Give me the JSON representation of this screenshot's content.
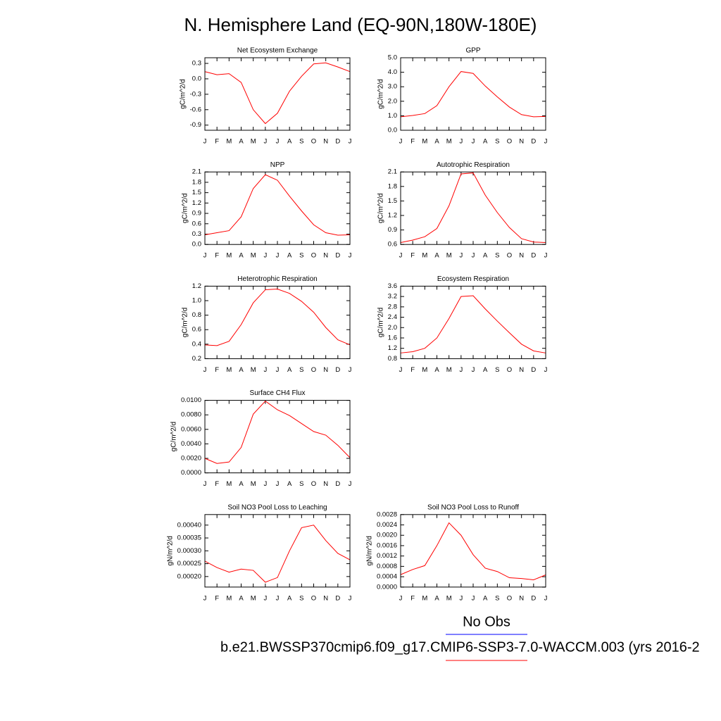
{
  "title": "N. Hemisphere Land (EQ-90N,180W-180E)",
  "legend": [
    {
      "name": "No Obs",
      "color": "#0000ff"
    },
    {
      "name": "b.e21.BWSSP370cmip6.f09_g17.CMIP6-SSP3-7.0-WACCM.003 (yrs 2016-2",
      "color": "#ff0000"
    }
  ],
  "chart_data": [
    {
      "type": "line",
      "title": "Net Ecosystem Exchange",
      "y_label": "gC/m^2/d",
      "categories": [
        "J",
        "F",
        "M",
        "A",
        "M",
        "J",
        "J",
        "A",
        "S",
        "O",
        "N",
        "D",
        "J"
      ],
      "values": [
        0.14,
        0.08,
        0.1,
        -0.07,
        -0.6,
        -0.87,
        -0.67,
        -0.24,
        0.05,
        0.29,
        0.31,
        0.23,
        0.14
      ],
      "color": "#ff0000",
      "ylim": [
        -1.0,
        0.41
      ],
      "yticks": [
        -0.9,
        -0.6,
        -0.3,
        {
          "value": 0,
          "label": "0.0"
        },
        0.3
      ]
    },
    {
      "type": "line",
      "title": "GPP",
      "y_label": "gC/m^2/d",
      "categories": [
        "J",
        "F",
        "M",
        "A",
        "M",
        "J",
        "J",
        "A",
        "S",
        "O",
        "N",
        "D",
        "J"
      ],
      "values": [
        0.93,
        1.02,
        1.15,
        1.7,
        3.0,
        4.05,
        3.92,
        3.05,
        2.3,
        1.6,
        1.08,
        0.93,
        0.95
      ],
      "color": "#ff0000",
      "ylim": [
        0,
        5
      ],
      "yticks": [
        {
          "value": 0,
          "label": "0.0"
        },
        {
          "value": 1,
          "label": "1.0"
        },
        {
          "value": 2,
          "label": "2.0"
        },
        {
          "value": 3,
          "label": "3.0"
        },
        {
          "value": 4,
          "label": "4.0"
        },
        {
          "value": 5,
          "label": "5.0"
        }
      ]
    },
    {
      "type": "line",
      "title": "NPP",
      "y_label": "gC/m^2/d",
      "categories": [
        "J",
        "F",
        "M",
        "A",
        "M",
        "J",
        "J",
        "A",
        "S",
        "O",
        "N",
        "D",
        "J"
      ],
      "values": [
        0.28,
        0.34,
        0.4,
        0.8,
        1.62,
        2.02,
        1.86,
        1.4,
        0.97,
        0.57,
        0.34,
        0.27,
        0.28
      ],
      "color": "#ff0000",
      "ylim": [
        0,
        2.1
      ],
      "yticks": [
        {
          "value": 0,
          "label": "0.0"
        },
        0.3,
        0.6,
        0.9,
        1.2,
        1.5,
        1.8,
        2.1
      ]
    },
    {
      "type": "line",
      "title": "Autotrophic Respiration",
      "y_label": "gC/m^2/d",
      "categories": [
        "J",
        "F",
        "M",
        "A",
        "M",
        "J",
        "J",
        "A",
        "S",
        "O",
        "N",
        "D",
        "J"
      ],
      "values": [
        0.64,
        0.69,
        0.76,
        0.93,
        1.4,
        2.06,
        2.08,
        1.62,
        1.26,
        0.95,
        0.72,
        0.65,
        0.64
      ],
      "color": "#ff0000",
      "ylim": [
        0.6,
        2.1
      ],
      "yticks": [
        0.6,
        0.9,
        1.2,
        1.5,
        1.8,
        2.1
      ]
    },
    {
      "type": "line",
      "title": "Heterotrophic Respiration",
      "y_label": "gC/m^2/d",
      "categories": [
        "J",
        "F",
        "M",
        "A",
        "M",
        "J",
        "J",
        "A",
        "S",
        "O",
        "N",
        "D",
        "J"
      ],
      "values": [
        0.39,
        0.38,
        0.44,
        0.67,
        0.97,
        1.15,
        1.16,
        1.1,
        0.99,
        0.84,
        0.63,
        0.46,
        0.39
      ],
      "color": "#ff0000",
      "ylim": [
        0.2,
        1.2
      ],
      "yticks": [
        0.2,
        0.4,
        0.6,
        0.8,
        {
          "value": 1,
          "label": "1.0"
        },
        1.2
      ]
    },
    {
      "type": "line",
      "title": "Ecosystem Respiration",
      "y_label": "gC/m^2/d",
      "categories": [
        "J",
        "F",
        "M",
        "A",
        "M",
        "J",
        "J",
        "A",
        "S",
        "O",
        "N",
        "D",
        "J"
      ],
      "values": [
        1.02,
        1.07,
        1.2,
        1.6,
        2.35,
        3.2,
        3.23,
        2.72,
        2.25,
        1.8,
        1.36,
        1.1,
        1.02
      ],
      "color": "#ff0000",
      "ylim": [
        0.8,
        3.6
      ],
      "yticks": [
        0.8,
        1.2,
        1.6,
        {
          "value": 2,
          "label": "2.0"
        },
        2.4,
        2.8,
        3.2,
        3.6
      ]
    },
    {
      "type": "line",
      "title": "Surface CH4 Flux",
      "y_label": "gC/m^2/d",
      "categories": [
        "J",
        "F",
        "M",
        "A",
        "M",
        "J",
        "J",
        "A",
        "S",
        "O",
        "N",
        "D",
        "J"
      ],
      "values": [
        0.002,
        0.0013,
        0.0015,
        0.0035,
        0.0081,
        0.0099,
        0.0087,
        0.0079,
        0.0068,
        0.0057,
        0.0052,
        0.0038,
        0.0021
      ],
      "color": "#ff0000",
      "ylim": [
        0,
        0.01
      ],
      "yticks": [
        {
          "value": 0,
          "label": "0.0000"
        },
        {
          "value": 0.002,
          "label": "0.0020"
        },
        {
          "value": 0.004,
          "label": "0.0040"
        },
        {
          "value": 0.006,
          "label": "0.0060"
        },
        {
          "value": 0.008,
          "label": "0.0080"
        },
        {
          "value": 0.01,
          "label": "0.0100"
        }
      ]
    },
    {
      "type": "line",
      "title": "Soil NO3 Pool Loss to Leaching",
      "y_label": "gN/m^2/d",
      "categories": [
        "J",
        "F",
        "M",
        "A",
        "M",
        "J",
        "J",
        "A",
        "S",
        "O",
        "N",
        "D",
        "J"
      ],
      "values": [
        0.00026,
        0.000235,
        0.000217,
        0.000229,
        0.000224,
        0.000178,
        0.000196,
        0.0003,
        0.00039,
        0.0004,
        0.00034,
        0.00029,
        0.000265
      ],
      "color": "#ff0000",
      "ylim": [
        0.000159,
        0.000441
      ],
      "yticks": [
        {
          "value": 0.0002,
          "label": "0.00020"
        },
        {
          "value": 0.00025,
          "label": "0.00025"
        },
        {
          "value": 0.0003,
          "label": "0.00030"
        },
        {
          "value": 0.00035,
          "label": "0.00035"
        },
        {
          "value": 0.0004,
          "label": "0.00040"
        }
      ]
    },
    {
      "type": "line",
      "title": "Soil NO3 Pool Loss to Runoff",
      "y_label": "gN/m^2/d",
      "categories": [
        "J",
        "F",
        "M",
        "A",
        "M",
        "J",
        "J",
        "A",
        "S",
        "O",
        "N",
        "D",
        "J"
      ],
      "values": [
        0.00048,
        0.00068,
        0.00083,
        0.0016,
        0.00248,
        0.002,
        0.00125,
        0.00073,
        0.0006,
        0.00036,
        0.00033,
        0.00028,
        0.00047
      ],
      "color": "#ff0000",
      "ylim": [
        0,
        0.0028
      ],
      "yticks": [
        {
          "value": 0,
          "label": "0.0000"
        },
        {
          "value": 0.0004,
          "label": "0.0004"
        },
        {
          "value": 0.0008,
          "label": "0.0008"
        },
        {
          "value": 0.0012,
          "label": "0.0012"
        },
        {
          "value": 0.0016,
          "label": "0.0016"
        },
        {
          "value": 0.002,
          "label": "0.0020"
        },
        {
          "value": 0.0024,
          "label": "0.0024"
        },
        {
          "value": 0.0028,
          "label": "0.0028"
        }
      ]
    }
  ]
}
